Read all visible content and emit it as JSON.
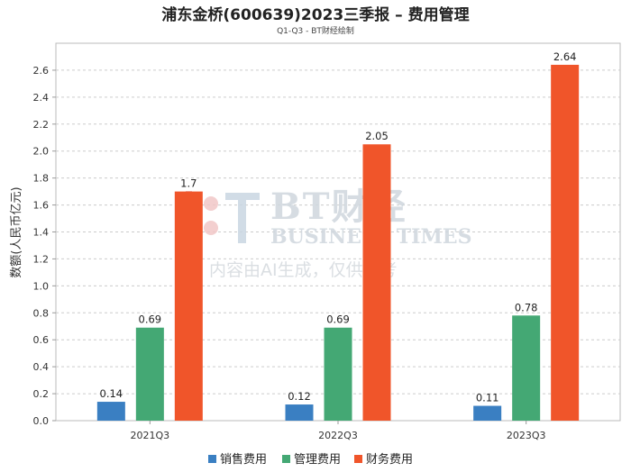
{
  "chart_data": {
    "type": "bar",
    "title": "浦东金桥(600639)2023三季报 – 费用管理",
    "subtitle": "Q1-Q3 - BT财经绘制",
    "ylabel": "数额(人民币亿元)",
    "xlabel": "",
    "categories": [
      "2021Q3",
      "2022Q3",
      "2023Q3"
    ],
    "ylim": [
      0,
      2.8
    ],
    "yticks": [
      0.0,
      0.2,
      0.4,
      0.6,
      0.8,
      1.0,
      1.2,
      1.4,
      1.6,
      1.8,
      2.0,
      2.2,
      2.4,
      2.6
    ],
    "grid": true,
    "legend_position": "bottom",
    "series": [
      {
        "name": "销售费用",
        "color": "#3a7fc2",
        "values": [
          0.14,
          0.12,
          0.11
        ],
        "labels": [
          "0.14",
          "0.12",
          "0.11"
        ]
      },
      {
        "name": "管理费用",
        "color": "#44a874",
        "values": [
          0.69,
          0.69,
          0.78
        ],
        "labels": [
          "0.69",
          "0.69",
          "0.78"
        ]
      },
      {
        "name": "财务费用",
        "color": "#f0552a",
        "values": [
          1.7,
          2.05,
          2.64
        ],
        "labels": [
          "1.7",
          "2.05",
          "2.64"
        ]
      }
    ]
  },
  "watermark": {
    "brand": "BT财经",
    "brand_en": "BUSINESS TIMES",
    "note": "内容由AI生成，仅供参考"
  }
}
